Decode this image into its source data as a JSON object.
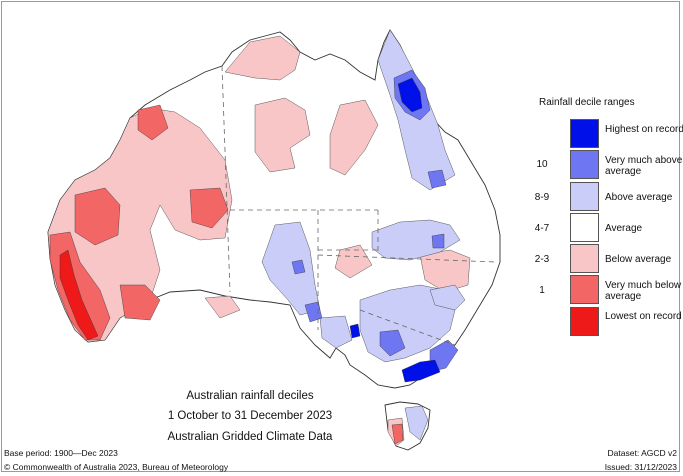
{
  "title": {
    "line1": "Australian rainfall deciles",
    "line2": "1 October to 31 December 2023",
    "line3": "Australian Gridded Climate Data"
  },
  "legend": {
    "title": "Rainfall decile ranges",
    "items": [
      {
        "range": "",
        "label": "Highest on record",
        "color": "#0010e8"
      },
      {
        "range": "10",
        "label": "Very much above average",
        "color": "#6e76f2"
      },
      {
        "range": "8-9",
        "label": "Above average",
        "color": "#c9cdf7"
      },
      {
        "range": "4-7",
        "label": "Average",
        "color": "#ffffff"
      },
      {
        "range": "2-3",
        "label": "Below average",
        "color": "#f8c6c6"
      },
      {
        "range": "1",
        "label": "Very much below average",
        "color": "#f26666"
      },
      {
        "range": "",
        "label": "Lowest on record",
        "color": "#ee1a1a"
      }
    ]
  },
  "footer": {
    "base_period": "Base period: 1900—Dec 2023",
    "dataset": "Dataset: AGCD v2",
    "copyright": "© Commonwealth of Australia 2023, Bureau of Meteorology",
    "issued": "Issued: 31/12/2023"
  },
  "colors": {
    "highest": "#0010e8",
    "very_much_above": "#6e76f2",
    "above": "#c9cdf7",
    "average": "#ffffff",
    "below": "#f8c6c6",
    "very_much_below": "#f26666",
    "lowest": "#ee1a1a",
    "coast": "#333333",
    "borders": "#666666"
  }
}
